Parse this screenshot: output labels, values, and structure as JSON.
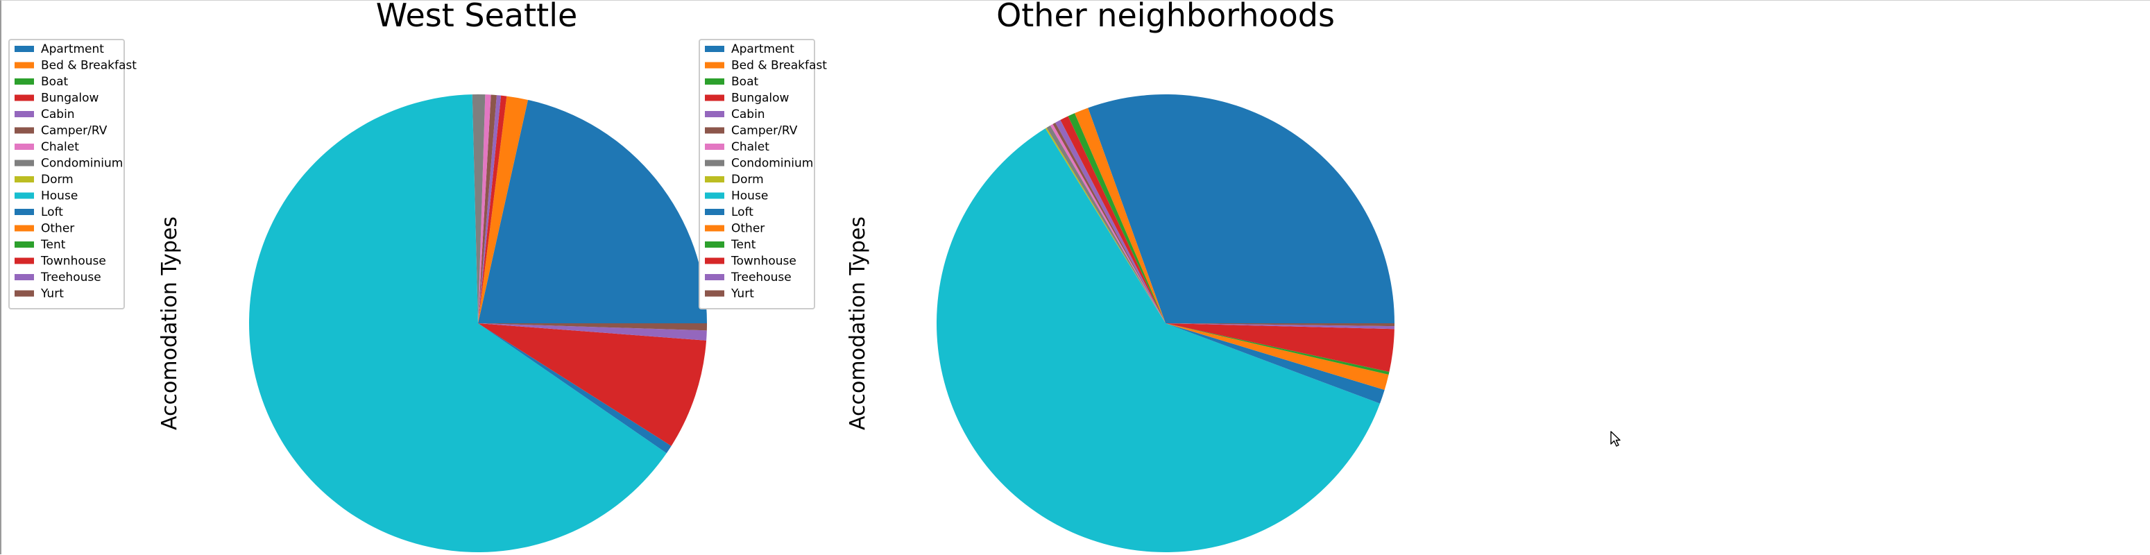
{
  "chart_data": [
    {
      "type": "pie",
      "title": "West Seattle",
      "ylabel": "Accomodation Types",
      "legend_position": "upper-left",
      "categories": [
        "Apartment",
        "Bed & Breakfast",
        "Boat",
        "Bungalow",
        "Cabin",
        "Camper/RV",
        "Chalet",
        "Condominium",
        "Dorm",
        "House",
        "Loft",
        "Other",
        "Tent",
        "Townhouse",
        "Treehouse",
        "Yurt"
      ],
      "values": [
        21.5,
        1.5,
        0.0,
        0.4,
        0.3,
        0.4,
        0.4,
        0.9,
        0.0,
        65.0,
        0.6,
        0.0,
        0.0,
        7.8,
        0.7,
        0.5
      ],
      "start_angle_deg": 0,
      "direction": "counterclockwise"
    },
    {
      "type": "pie",
      "title": "Other neighborhoods",
      "ylabel": "Accomodation Types",
      "legend_position": "upper-left",
      "categories": [
        "Apartment",
        "Bed & Breakfast",
        "Boat",
        "Bungalow",
        "Cabin",
        "Camper/RV",
        "Chalet",
        "Condominium",
        "Dorm",
        "House",
        "Loft",
        "Other",
        "Tent",
        "Townhouse",
        "Treehouse",
        "Yurt"
      ],
      "values": [
        30.5,
        1.0,
        0.5,
        0.6,
        0.4,
        0.2,
        0.2,
        0.3,
        0.1,
        60.5,
        1.0,
        1.1,
        0.2,
        3.0,
        0.2,
        0.2
      ],
      "start_angle_deg": 0,
      "direction": "counterclockwise"
    }
  ],
  "colors": [
    "#1f77b4",
    "#ff7f0e",
    "#2ca02c",
    "#d62728",
    "#9467bd",
    "#8c564b",
    "#e377c2",
    "#7f7f7f",
    "#bcbd22",
    "#17becf",
    "#1f77b4",
    "#ff7f0e",
    "#2ca02c",
    "#d62728",
    "#9467bd",
    "#8c564b"
  ],
  "cursor_icon": "mouse-pointer-icon"
}
